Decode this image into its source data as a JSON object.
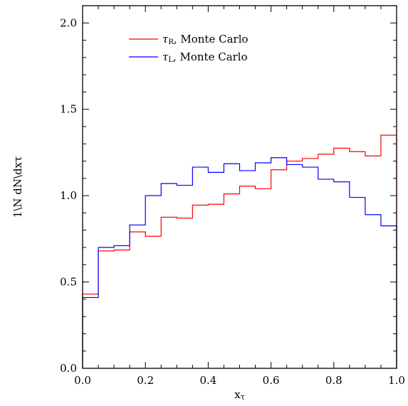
{
  "chart_data": {
    "type": "line",
    "title": "",
    "xlabel": "xτ",
    "ylabel": "1\\N dN\\dxτ",
    "xlim": [
      0.0,
      1.0
    ],
    "ylim": [
      0.0,
      2.1
    ],
    "grid": false,
    "legend_position": "top-left",
    "xticks": [
      0.0,
      0.2,
      0.4,
      0.6,
      0.8,
      1.0
    ],
    "xtick_labels": [
      "0.0",
      "0.2",
      "0.4",
      "0.6",
      "0.8",
      "1.0"
    ],
    "yticks": [
      0.0,
      0.5,
      1.0,
      1.5,
      2.0
    ],
    "ytick_labels": [
      "0.0",
      "0.5",
      "1.0",
      "1.5",
      "2.0"
    ],
    "bin_edges": [
      0.0,
      0.05,
      0.1,
      0.15,
      0.2,
      0.25,
      0.3,
      0.35,
      0.4,
      0.45,
      0.5,
      0.55,
      0.6,
      0.65,
      0.7,
      0.75,
      0.8,
      0.85,
      0.9,
      0.95,
      1.0
    ],
    "series": [
      {
        "name": "τR, Monte Carlo",
        "symbol": "τ",
        "subscript": "R",
        "desc": "Monte Carlo",
        "color": "#ff0000",
        "values": [
          0.43,
          0.68,
          0.685,
          0.79,
          0.765,
          0.875,
          0.87,
          0.945,
          0.95,
          1.01,
          1.055,
          1.04,
          1.15,
          1.2,
          1.215,
          1.24,
          1.275,
          1.255,
          1.23,
          1.35
        ]
      },
      {
        "name": "τL, Monte Carlo",
        "symbol": "τ",
        "subscript": "L",
        "desc": "Monte Carlo",
        "color": "#0000ff",
        "values": [
          0.41,
          0.7,
          0.71,
          0.83,
          1.0,
          1.07,
          1.06,
          1.165,
          1.135,
          1.185,
          1.145,
          1.19,
          1.22,
          1.18,
          1.165,
          1.095,
          1.08,
          0.99,
          0.89,
          0.825
        ]
      }
    ]
  }
}
